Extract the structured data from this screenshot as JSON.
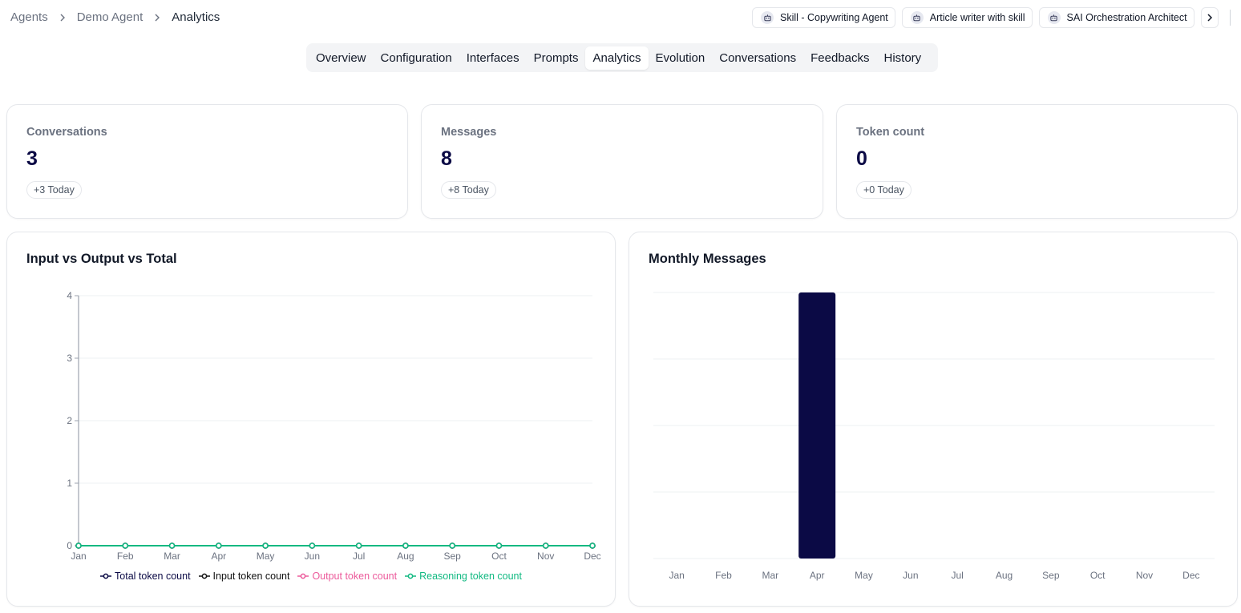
{
  "breadcrumb": [
    {
      "label": "Agents"
    },
    {
      "label": "Demo Agent"
    },
    {
      "label": "Analytics"
    }
  ],
  "agent_chips": [
    {
      "label": "Skill - Copywriting Agent",
      "icon": "robot-icon"
    },
    {
      "label": "Article writer with skill",
      "icon": "robot-icon"
    },
    {
      "label": "SAI Orchestration Architect",
      "icon": "robot-icon"
    }
  ],
  "tabs": [
    {
      "label": "Overview"
    },
    {
      "label": "Configuration"
    },
    {
      "label": "Interfaces"
    },
    {
      "label": "Prompts"
    },
    {
      "label": "Analytics",
      "active": true
    },
    {
      "label": "Evolution"
    },
    {
      "label": "Conversations"
    },
    {
      "label": "Feedbacks"
    },
    {
      "label": "History"
    }
  ],
  "stats": [
    {
      "label": "Conversations",
      "value": "3",
      "badge": "+3 Today"
    },
    {
      "label": "Messages",
      "value": "8",
      "badge": "+8 Today"
    },
    {
      "label": "Token count",
      "value": "0",
      "badge": "+0 Today"
    }
  ],
  "colors": {
    "accent_navy": "#0b0a45",
    "total": "#0b0a45",
    "input": "#111111",
    "output": "#ec5a9b",
    "reasoning": "#10b981"
  },
  "chart_data": [
    {
      "type": "line",
      "title": "Input vs Output vs Total",
      "categories": [
        "Jan",
        "Feb",
        "Mar",
        "Apr",
        "May",
        "Jun",
        "Jul",
        "Aug",
        "Sep",
        "Oct",
        "Nov",
        "Dec"
      ],
      "ylim": [
        0,
        4
      ],
      "yticks": [
        0,
        1,
        2,
        3,
        4
      ],
      "grid": true,
      "legend": "bottom",
      "series": [
        {
          "name": "Total token count",
          "color": "#0b0a45",
          "values": [
            0,
            0,
            0,
            0,
            0,
            0,
            0,
            0,
            0,
            0,
            0,
            0
          ]
        },
        {
          "name": "Input token count",
          "color": "#111111",
          "values": [
            0,
            0,
            0,
            0,
            0,
            0,
            0,
            0,
            0,
            0,
            0,
            0
          ]
        },
        {
          "name": "Output token count",
          "color": "#ec5a9b",
          "values": [
            0,
            0,
            0,
            0,
            0,
            0,
            0,
            0,
            0,
            0,
            0,
            0
          ]
        },
        {
          "name": "Reasoning token count",
          "color": "#10b981",
          "values": [
            0,
            0,
            0,
            0,
            0,
            0,
            0,
            0,
            0,
            0,
            0,
            0
          ]
        }
      ]
    },
    {
      "type": "bar",
      "title": "Monthly Messages",
      "categories": [
        "Jan",
        "Feb",
        "Mar",
        "Apr",
        "May",
        "Jun",
        "Jul",
        "Aug",
        "Sep",
        "Oct",
        "Nov",
        "Dec"
      ],
      "values": [
        0,
        0,
        0,
        8,
        0,
        0,
        0,
        0,
        0,
        0,
        0,
        0
      ],
      "ylim": [
        0,
        8
      ],
      "grid": true,
      "color": "#0b0a45"
    }
  ]
}
